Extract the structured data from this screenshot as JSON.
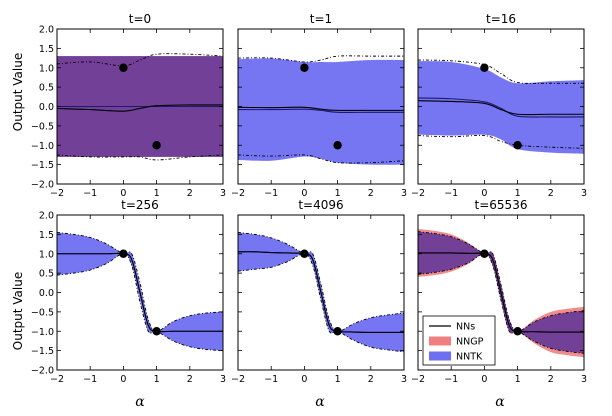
{
  "chart_data": {
    "type": "line",
    "ylabel": "Output Value",
    "xlabel": "α",
    "xlim": [
      -2,
      3
    ],
    "ylim": [
      -2.0,
      2.0
    ],
    "xticks": [
      -2,
      -1,
      0,
      1,
      2,
      3
    ],
    "yticks": [
      -2.0,
      -1.5,
      -1.0,
      -0.5,
      0.0,
      0.5,
      1.0,
      1.5,
      2.0
    ],
    "xtick_labels": [
      "−2",
      "−1",
      "0",
      "1",
      "2",
      "3"
    ],
    "ytick_labels": [
      "−2.0",
      "−1.5",
      "−1.0",
      "−0.5",
      "0.0",
      "0.5",
      "1.0",
      "1.5",
      "2.0"
    ],
    "training_points": [
      {
        "x": 0,
        "y": 1.0
      },
      {
        "x": 1,
        "y": -1.0
      }
    ],
    "legend": {
      "placement": "lower-right",
      "entries": [
        {
          "name": "NNs",
          "kind": "line",
          "color": "#000000"
        },
        {
          "name": "NNGP",
          "kind": "patch",
          "color": "#f08080"
        },
        {
          "name": "NNTK",
          "kind": "patch",
          "color": "#6f6ff2"
        }
      ]
    },
    "colors": {
      "nntk": "#6f6ff2",
      "nngp": "#f08080",
      "overlap": "#6a3c98",
      "line": "#1a1a6e"
    },
    "panels": [
      {
        "title": "t=0",
        "x": [
          -2,
          -1,
          0,
          0.5,
          1,
          2,
          3
        ],
        "nntk_mean": [
          0.0,
          0.0,
          0.0,
          0.0,
          0.0,
          0.0,
          0.0
        ],
        "nntk_std": [
          1.3,
          1.3,
          1.3,
          1.3,
          1.3,
          1.3,
          1.3
        ],
        "nngp_mean": [
          0.0,
          0.0,
          0.0,
          0.0,
          0.0,
          0.0,
          0.0
        ],
        "nngp_std": [
          1.3,
          1.3,
          1.3,
          1.3,
          1.3,
          1.3,
          1.3
        ],
        "nn_mean": [
          -0.05,
          -0.08,
          -0.12,
          -0.05,
          0.02,
          0.04,
          0.04
        ],
        "nn_upper": [
          1.1,
          1.15,
          1.05,
          1.2,
          1.35,
          1.35,
          1.3
        ],
        "nn_lower": [
          -1.25,
          -1.3,
          -1.3,
          -1.3,
          -1.38,
          -1.3,
          -1.25
        ]
      },
      {
        "title": "t=1",
        "x": [
          -2,
          -1,
          0,
          0.5,
          1,
          2,
          3
        ],
        "nntk_mean": [
          -0.08,
          -0.08,
          -0.07,
          -0.1,
          -0.15,
          -0.15,
          -0.15
        ],
        "nntk_std": [
          1.3,
          1.32,
          1.22,
          1.25,
          1.3,
          1.35,
          1.35
        ],
        "nn_mean": [
          -0.02,
          -0.03,
          -0.02,
          -0.07,
          -0.1,
          -0.1,
          -0.1
        ],
        "nn_upper": [
          1.25,
          1.25,
          1.15,
          1.2,
          1.3,
          1.3,
          1.3
        ],
        "nn_lower": [
          -1.25,
          -1.28,
          -1.25,
          -1.35,
          -1.45,
          -1.45,
          -1.4
        ]
      },
      {
        "title": "t=16",
        "x": [
          -2,
          -1,
          0,
          0.5,
          1,
          2,
          3
        ],
        "nntk_mean": [
          0.22,
          0.2,
          0.12,
          -0.05,
          -0.25,
          -0.27,
          -0.27
        ],
        "nntk_std": [
          0.95,
          0.95,
          0.85,
          0.8,
          0.85,
          0.92,
          0.95
        ],
        "nn_mean": [
          0.15,
          0.13,
          0.08,
          -0.08,
          -0.2,
          -0.2,
          -0.2
        ],
        "nn_upper": [
          1.2,
          1.18,
          1.08,
          0.85,
          0.62,
          0.6,
          0.6
        ],
        "nn_lower": [
          -0.75,
          -0.78,
          -0.75,
          -0.9,
          -1.0,
          -1.05,
          -1.08
        ]
      },
      {
        "title": "t=256",
        "x": [
          -2,
          -1.5,
          -1,
          -0.5,
          0,
          0.25,
          0.5,
          0.75,
          1,
          1.5,
          2,
          2.5,
          3
        ],
        "nntk_mean": [
          1.0,
          1.0,
          1.0,
          1.0,
          1.0,
          0.85,
          0.0,
          -0.85,
          -1.0,
          -1.0,
          -1.0,
          -1.0,
          -1.0
        ],
        "nntk_std": [
          0.55,
          0.5,
          0.42,
          0.25,
          0.0,
          0.15,
          0.2,
          0.15,
          0.0,
          0.25,
          0.4,
          0.47,
          0.5
        ],
        "nn_mean": [
          1.0,
          1.0,
          1.0,
          1.0,
          1.0,
          0.85,
          0.0,
          -0.85,
          -1.0,
          -1.0,
          -1.0,
          -1.0,
          -1.0
        ],
        "nn_upper": [
          1.55,
          1.5,
          1.42,
          1.25,
          1.0,
          1.0,
          0.25,
          -0.7,
          -1.0,
          -0.75,
          -0.6,
          -0.53,
          -0.5
        ],
        "nn_lower": [
          0.45,
          0.5,
          0.58,
          0.75,
          1.0,
          0.7,
          -0.25,
          -1.0,
          -1.0,
          -1.25,
          -1.4,
          -1.47,
          -1.5
        ]
      },
      {
        "title": "t=4096",
        "x": [
          -2,
          -1.5,
          -1,
          -0.5,
          0,
          0.25,
          0.5,
          0.75,
          1,
          1.5,
          2,
          2.5,
          3
        ],
        "nntk_mean": [
          1.05,
          1.05,
          1.03,
          1.02,
          1.0,
          0.85,
          0.0,
          -0.85,
          -1.0,
          -1.02,
          -1.03,
          -1.03,
          -1.03
        ],
        "nntk_std": [
          0.5,
          0.45,
          0.38,
          0.22,
          0.0,
          0.15,
          0.2,
          0.15,
          0.0,
          0.22,
          0.38,
          0.45,
          0.5
        ],
        "nn_mean": [
          1.05,
          1.05,
          1.03,
          1.02,
          1.0,
          0.85,
          0.0,
          -0.85,
          -1.0,
          -1.02,
          -1.03,
          -1.03,
          -1.03
        ],
        "nn_upper": [
          1.55,
          1.5,
          1.41,
          1.24,
          1.0,
          1.0,
          0.2,
          -0.7,
          -1.0,
          -0.8,
          -0.65,
          -0.58,
          -0.53
        ],
        "nn_lower": [
          0.55,
          0.6,
          0.65,
          0.8,
          1.0,
          0.7,
          -0.2,
          -1.0,
          -1.0,
          -1.24,
          -1.41,
          -1.48,
          -1.53
        ]
      },
      {
        "title": "t=65536",
        "x": [
          -2,
          -1.5,
          -1,
          -0.5,
          0,
          0.25,
          0.5,
          0.75,
          1,
          1.5,
          2,
          2.5,
          3
        ],
        "nntk_mean": [
          1.02,
          1.02,
          1.02,
          1.01,
          1.0,
          0.85,
          0.0,
          -0.85,
          -1.0,
          -1.01,
          -1.02,
          -1.02,
          -1.02
        ],
        "nntk_std": [
          0.55,
          0.5,
          0.42,
          0.25,
          0.0,
          0.15,
          0.2,
          0.15,
          0.0,
          0.25,
          0.42,
          0.5,
          0.55
        ],
        "nngp_mean": [
          1.02,
          1.02,
          1.02,
          1.01,
          1.0,
          0.85,
          0.0,
          -0.85,
          -1.0,
          -1.01,
          -1.02,
          -1.02,
          -1.02
        ],
        "nngp_std": [
          0.62,
          0.57,
          0.48,
          0.28,
          0.0,
          0.17,
          0.22,
          0.17,
          0.0,
          0.3,
          0.52,
          0.6,
          0.65
        ],
        "nn_mean": [
          1.02,
          1.02,
          1.02,
          1.01,
          1.0,
          0.85,
          0.0,
          -0.85,
          -1.0,
          -1.01,
          -1.02,
          -1.02,
          -1.02
        ],
        "nn_upper": [
          1.57,
          1.52,
          1.44,
          1.26,
          1.0,
          1.0,
          0.2,
          -0.7,
          -1.0,
          -0.76,
          -0.6,
          -0.52,
          -0.47
        ],
        "nn_lower": [
          0.47,
          0.52,
          0.6,
          0.76,
          1.0,
          0.7,
          -0.2,
          -1.0,
          -1.0,
          -1.26,
          -1.44,
          -1.52,
          -1.57
        ]
      }
    ]
  }
}
